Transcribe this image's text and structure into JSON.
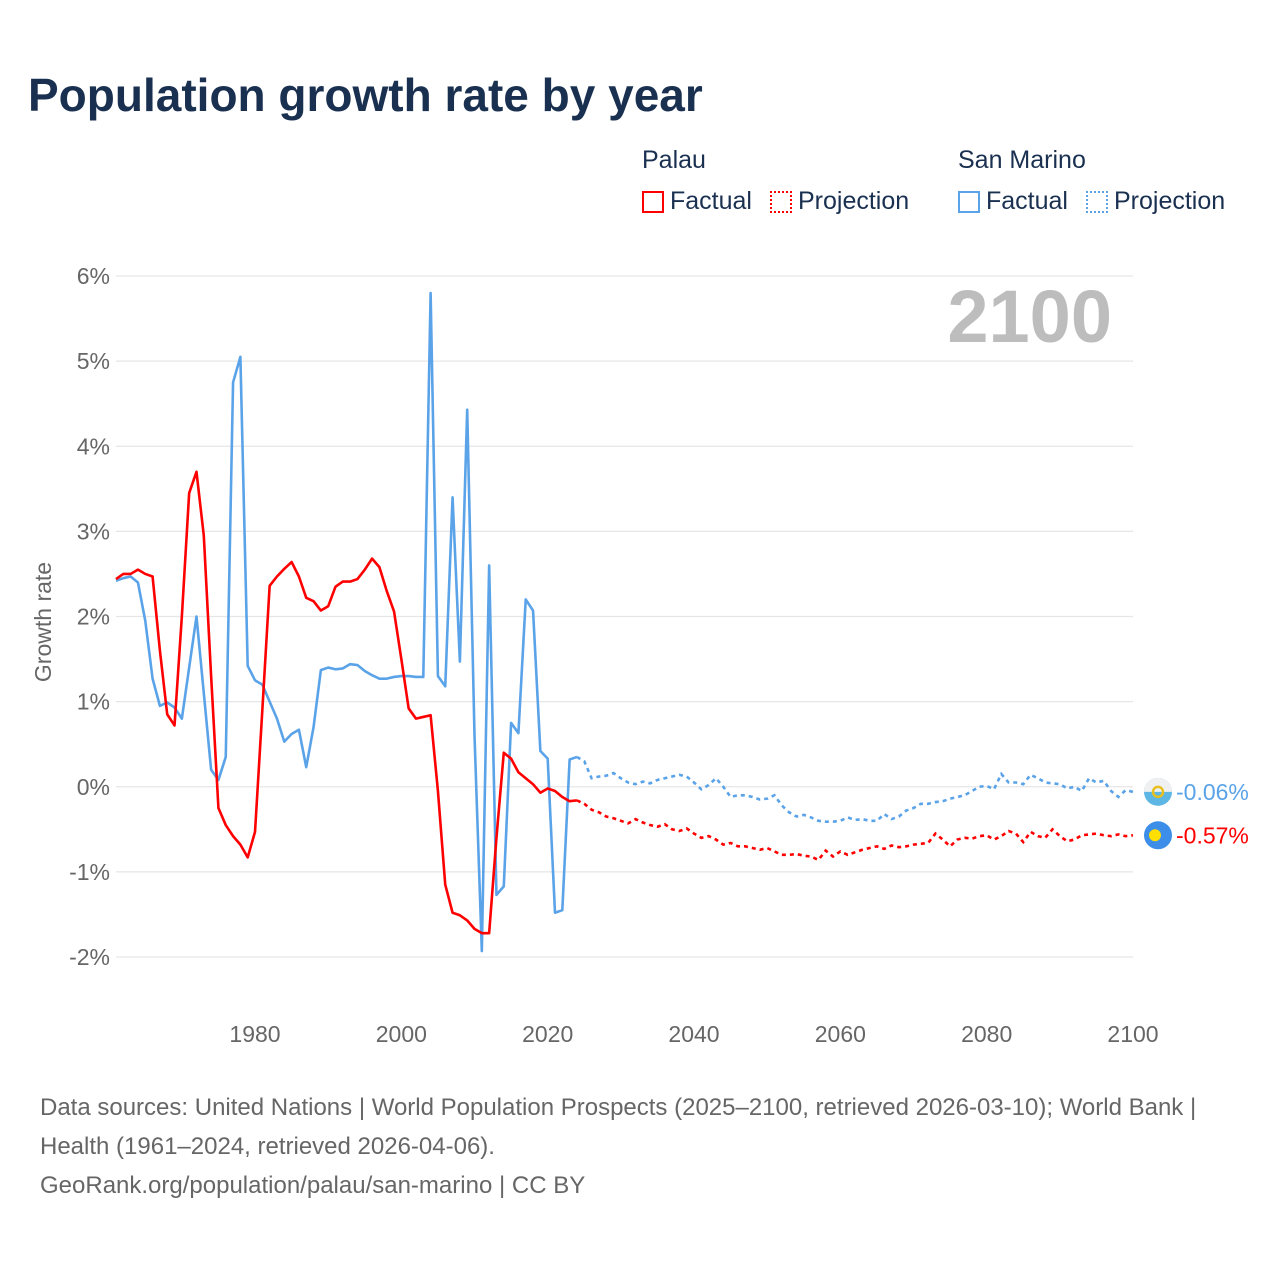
{
  "title": "Population growth rate by year",
  "legend": [
    {
      "country": "Palau",
      "color": "#ff0000",
      "factual": "Factual",
      "projection": "Projection"
    },
    {
      "country": "San Marino",
      "color": "#5ba3e8",
      "factual": "Factual",
      "projection": "Projection"
    }
  ],
  "year_watermark": "2100",
  "source_line1": "Data sources: United Nations | World Population Prospects (2025–2100, retrieved 2026-03-10); World Bank | Health (1961–2024, retrieved 2026-04-06).",
  "source_line2": "GeoRank.org/population/palau/san-marino | CC BY",
  "chart_data": {
    "type": "line",
    "title": "Population growth rate by year",
    "xlabel": "",
    "ylabel": "Growth rate",
    "xlim": [
      1961,
      2100
    ],
    "ylim": [
      -2,
      6
    ],
    "x_ticks": [
      1980,
      2000,
      2020,
      2040,
      2060,
      2080,
      2100
    ],
    "y_ticks": [
      -2,
      -1,
      0,
      1,
      2,
      3,
      4,
      5,
      6
    ],
    "y_tick_labels": [
      "-2%",
      "-1%",
      "0%",
      "1%",
      "2%",
      "3%",
      "4%",
      "5%",
      "6%"
    ],
    "x_tick_labels": [
      "1980",
      "2000",
      "2020",
      "2040",
      "2060",
      "2080",
      "2100"
    ],
    "factual_start_year": 1961,
    "projection_start_year": 2025,
    "series": [
      {
        "name": "Palau",
        "color": "#ff0000",
        "end_label": "-0.57%",
        "factual": [
          2.44,
          2.5,
          2.5,
          2.55,
          2.5,
          2.47,
          1.6,
          0.85,
          0.72,
          2.0,
          3.45,
          3.7,
          2.95,
          1.3,
          -0.25,
          -0.45,
          -0.58,
          -0.68,
          -0.83,
          -0.53,
          0.9,
          2.36,
          2.47,
          2.56,
          2.64,
          2.47,
          2.22,
          2.18,
          2.07,
          2.12,
          2.35,
          2.41,
          2.41,
          2.44,
          2.55,
          2.68,
          2.58,
          2.3,
          2.06,
          1.5,
          0.92,
          0.8,
          0.82,
          0.84,
          -0.05,
          -1.15,
          -1.48,
          -1.51,
          -1.57,
          -1.67,
          -1.72,
          -1.72,
          -0.6,
          0.4,
          0.33,
          0.17,
          0.1,
          0.03,
          -0.07,
          -0.02,
          -0.05,
          -0.12,
          -0.17,
          -0.16
        ],
        "projection": [
          -0.2,
          -0.27,
          -0.3,
          -0.35,
          -0.37,
          -0.4,
          -0.43,
          -0.38,
          -0.42,
          -0.45,
          -0.47,
          -0.44,
          -0.5,
          -0.52,
          -0.49,
          -0.55,
          -0.6,
          -0.58,
          -0.62,
          -0.68,
          -0.66,
          -0.7,
          -0.7,
          -0.72,
          -0.74,
          -0.72,
          -0.76,
          -0.8,
          -0.8,
          -0.79,
          -0.81,
          -0.82,
          -0.86,
          -0.75,
          -0.82,
          -0.76,
          -0.8,
          -0.77,
          -0.74,
          -0.72,
          -0.7,
          -0.73,
          -0.69,
          -0.71,
          -0.7,
          -0.68,
          -0.67,
          -0.66,
          -0.55,
          -0.62,
          -0.7,
          -0.62,
          -0.6,
          -0.61,
          -0.58,
          -0.57,
          -0.62,
          -0.58,
          -0.52,
          -0.55,
          -0.65,
          -0.53,
          -0.58,
          -0.6,
          -0.5,
          -0.58,
          -0.64,
          -0.62,
          -0.57,
          -0.56,
          -0.55,
          -0.57,
          -0.58,
          -0.56,
          -0.58,
          -0.57
        ]
      },
      {
        "name": "San Marino",
        "color": "#5ba3e8",
        "end_label": "-0.06%",
        "factual": [
          2.42,
          2.45,
          2.47,
          2.4,
          1.95,
          1.27,
          0.95,
          0.99,
          0.93,
          0.8,
          1.4,
          2.0,
          1.1,
          0.2,
          0.08,
          0.35,
          4.75,
          5.05,
          1.42,
          1.25,
          1.2,
          1.0,
          0.8,
          0.53,
          0.62,
          0.67,
          0.23,
          0.7,
          1.37,
          1.4,
          1.38,
          1.39,
          1.44,
          1.43,
          1.36,
          1.31,
          1.27,
          1.27,
          1.29,
          1.3,
          1.3,
          1.29,
          1.29,
          5.8,
          1.3,
          1.18,
          3.4,
          1.47,
          4.43,
          0.6,
          -1.93,
          2.6,
          -1.27,
          -1.17,
          0.75,
          0.63,
          2.2,
          2.07,
          0.42,
          0.33,
          -1.48,
          -1.45,
          0.32,
          0.35
        ],
        "projection": [
          0.3,
          0.1,
          0.12,
          0.13,
          0.16,
          0.1,
          0.05,
          0.03,
          0.06,
          0.04,
          0.08,
          0.1,
          0.12,
          0.14,
          0.12,
          0.05,
          -0.03,
          0.02,
          0.1,
          0.0,
          -0.12,
          -0.1,
          -0.1,
          -0.12,
          -0.15,
          -0.14,
          -0.1,
          -0.22,
          -0.3,
          -0.35,
          -0.33,
          -0.36,
          -0.4,
          -0.41,
          -0.41,
          -0.4,
          -0.36,
          -0.39,
          -0.38,
          -0.4,
          -0.4,
          -0.32,
          -0.38,
          -0.35,
          -0.28,
          -0.25,
          -0.2,
          -0.2,
          -0.18,
          -0.17,
          -0.14,
          -0.12,
          -0.1,
          -0.05,
          0.0,
          0.01,
          -0.03,
          0.15,
          0.05,
          0.05,
          0.03,
          0.14,
          0.1,
          0.05,
          0.04,
          0.03,
          -0.02,
          0.0,
          -0.05,
          0.1,
          0.05,
          0.07,
          -0.05,
          -0.12,
          -0.04,
          -0.06
        ]
      }
    ]
  }
}
